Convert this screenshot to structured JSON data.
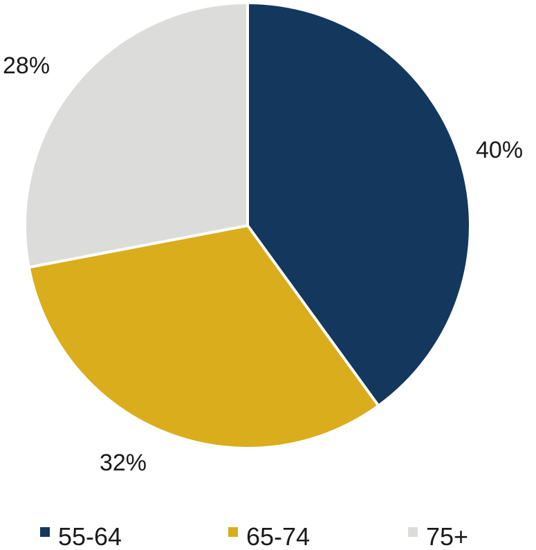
{
  "chart_data": {
    "type": "pie",
    "title": "",
    "categories": [
      "55-64",
      "65-74",
      "75+"
    ],
    "values": [
      40,
      32,
      28
    ],
    "labels": [
      "40%",
      "32%",
      "28%"
    ],
    "colors": [
      "#14375e",
      "#d9ad1c",
      "#dcdcda"
    ],
    "start_angle_deg": 0,
    "direction": "clockwise",
    "legend": "bottom",
    "legend_items": [
      {
        "label": "55-64",
        "color": "#14375e"
      },
      {
        "label": "65-74",
        "color": "#d9ad1c"
      },
      {
        "label": "75+",
        "color": "#dcdcda"
      }
    ]
  }
}
